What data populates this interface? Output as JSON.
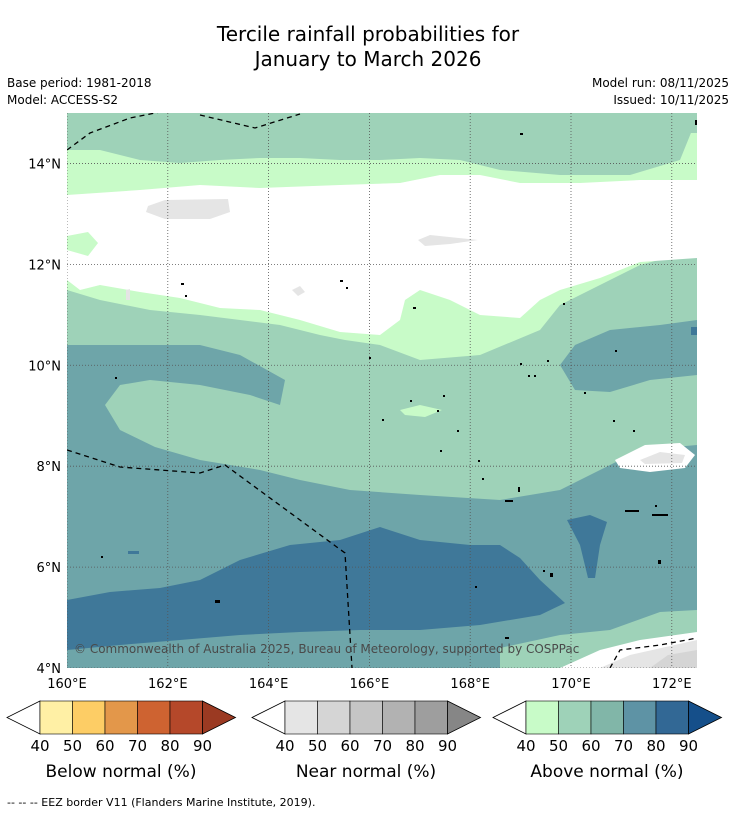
{
  "title_line1": "Tercile rainfall probabilities for",
  "title_line2": "January to March 2026",
  "base_period": "Base period: 1981-2018",
  "model": "Model: ACCESS-S2",
  "model_run": "Model run: 08/11/2025",
  "issued": "Issued: 10/11/2025",
  "copyright": "© Commonwealth of Australia 2025, Bureau of Meteorology, supported by COSPPac",
  "footnote": "--  --  -- EEZ border V11 (Flanders Marine Institute, 2019).",
  "map": {
    "lon_min": 160,
    "lon_max": 172.5,
    "lat_min": 4,
    "lat_max": 15,
    "lon_ticks": [
      160,
      162,
      164,
      166,
      168,
      170,
      172
    ],
    "lat_ticks": [
      4,
      6,
      8,
      10,
      12,
      14
    ],
    "lon_labels": [
      "160°E",
      "162°E",
      "164°E",
      "166°E",
      "168°E",
      "170°E",
      "172°E"
    ],
    "lat_labels": [
      "4°N",
      "6°N",
      "8°N",
      "10°N",
      "12°N",
      "14°N"
    ]
  },
  "colorbars": [
    {
      "name": "below",
      "label": "Below normal (%)",
      "ticks": [
        "40",
        "50",
        "60",
        "70",
        "80",
        "90"
      ],
      "colors": [
        "#fff0a5",
        "#fdcd65",
        "#e3974a",
        "#ce6331",
        "#b5482a",
        "#9b3a22"
      ]
    },
    {
      "name": "near",
      "label": "Near normal (%)",
      "ticks": [
        "40",
        "50",
        "60",
        "70",
        "80",
        "90"
      ],
      "colors": [
        "#e5e5e5",
        "#d5d5d5",
        "#c5c5c5",
        "#b2b2b2",
        "#9e9e9e",
        "#868686"
      ]
    },
    {
      "name": "above",
      "label": "Above normal (%)",
      "ticks": [
        "40",
        "50",
        "60",
        "70",
        "80",
        "90"
      ],
      "colors": [
        "#c8fbc8",
        "#9ed2b8",
        "#81b6a8",
        "#5e93a5",
        "#326895",
        "#154f8a"
      ]
    }
  ],
  "colors": {
    "above_40": "#c8fbc8",
    "above_50": "#9ed2b8",
    "above_60": "#6ea5a9",
    "above_70": "#3f7899",
    "near_40": "#e5e5e5",
    "near_50": "#d5d5d5"
  }
}
